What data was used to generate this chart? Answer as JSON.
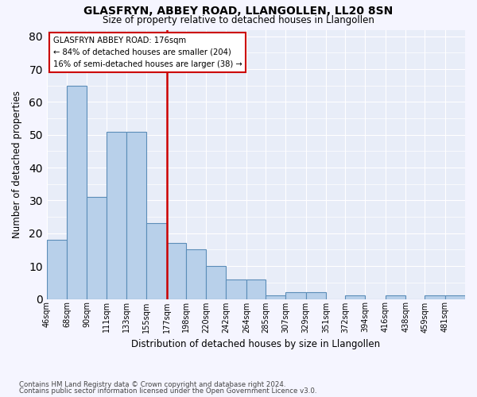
{
  "title": "GLASFRYN, ABBEY ROAD, LLANGOLLEN, LL20 8SN",
  "subtitle": "Size of property relative to detached houses in Llangollen",
  "xlabel": "Distribution of detached houses by size in Llangollen",
  "ylabel": "Number of detached properties",
  "bar_labels": [
    "46sqm",
    "68sqm",
    "90sqm",
    "111sqm",
    "133sqm",
    "155sqm",
    "177sqm",
    "198sqm",
    "220sqm",
    "242sqm",
    "264sqm",
    "285sqm",
    "307sqm",
    "329sqm",
    "351sqm",
    "372sqm",
    "394sqm",
    "416sqm",
    "438sqm",
    "459sqm",
    "481sqm"
  ],
  "bar_values": [
    18,
    65,
    31,
    51,
    51,
    23,
    17,
    15,
    10,
    6,
    6,
    1,
    2,
    2,
    0,
    1,
    0,
    1,
    0,
    1,
    1
  ],
  "bar_color": "#b8d0ea",
  "bar_edge_color": "#5b8db8",
  "background_color": "#e8edf8",
  "grid_color": "#ffffff",
  "property_line_label": "GLASFRYN ABBEY ROAD: 176sqm",
  "annotation_line1": "← 84% of detached houses are smaller (204)",
  "annotation_line2": "16% of semi-detached houses are larger (38) →",
  "annotation_box_color": "#ffffff",
  "annotation_box_edge": "#cc0000",
  "vline_color": "#cc0000",
  "ylim": [
    0,
    82
  ],
  "yticks": [
    0,
    10,
    20,
    30,
    40,
    50,
    60,
    70,
    80
  ],
  "footer1": "Contains HM Land Registry data © Crown copyright and database right 2024.",
  "footer2": "Contains public sector information licensed under the Open Government Licence v3.0.",
  "bin_edges": [
    46,
    68,
    90,
    111,
    133,
    155,
    177,
    198,
    220,
    242,
    264,
    285,
    307,
    329,
    351,
    372,
    394,
    416,
    438,
    459,
    481,
    503
  ]
}
